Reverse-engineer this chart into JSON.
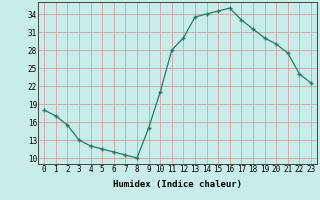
{
  "xlabel": "Humidex (Indice chaleur)",
  "x": [
    0,
    1,
    2,
    3,
    4,
    5,
    6,
    7,
    8,
    9,
    10,
    11,
    12,
    13,
    14,
    15,
    16,
    17,
    18,
    19,
    20,
    21,
    22,
    23
  ],
  "y": [
    18,
    17,
    15.5,
    13,
    12,
    11.5,
    11,
    10.5,
    10,
    15,
    21,
    28,
    30,
    33.5,
    34,
    34.5,
    35,
    33,
    31.5,
    30,
    29,
    27.5,
    24,
    22.5
  ],
  "line_color": "#2a7a65",
  "bg_color": "#c8ece8",
  "grid_color": "#d4a0a8",
  "yticks": [
    10,
    13,
    16,
    19,
    22,
    25,
    28,
    31,
    34
  ],
  "ylim": [
    9,
    36
  ],
  "xlim": [
    -0.5,
    23.5
  ],
  "tick_fontsize": 5.5,
  "xlabel_fontsize": 6.5
}
